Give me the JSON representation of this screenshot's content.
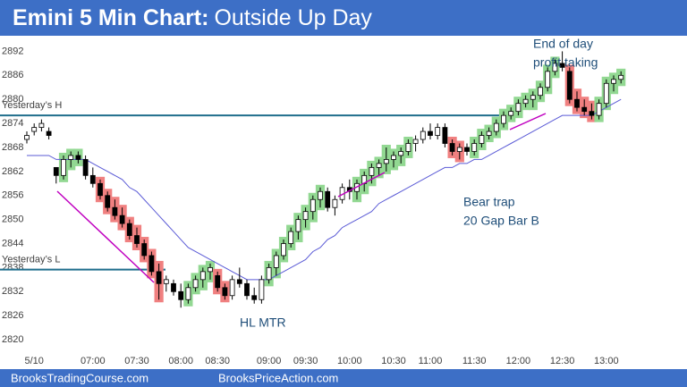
{
  "header": {
    "title_lead": "Emini 5 Min Chart:",
    "title_rest": "Outside Up Day",
    "color": "#3d6fc6"
  },
  "footer": {
    "left": "BrooksTradingCourse.com",
    "right": "BrooksPriceAction.com"
  },
  "chart_data": {
    "type": "candlestick",
    "categories": [
      null,
      "5/10",
      null,
      null,
      null,
      null,
      null,
      null,
      null,
      "07:00",
      null,
      null,
      null,
      null,
      null,
      "07:30",
      null,
      null,
      null,
      null,
      null,
      "08:00",
      null,
      null,
      null,
      null,
      "08:30",
      null,
      null,
      null,
      null,
      null,
      null,
      "09:00",
      null,
      null,
      null,
      null,
      "09:30",
      null,
      null,
      null,
      null,
      null,
      "10:00",
      null,
      null,
      null,
      null,
      null,
      "10:30",
      null,
      null,
      null,
      null,
      "11:00",
      null,
      null,
      null,
      null,
      null,
      "11:30",
      null,
      null,
      null,
      null,
      null,
      "12:00",
      null,
      null,
      null,
      null,
      null,
      "12:30",
      null,
      null,
      null,
      null,
      null,
      "13:00",
      null,
      null
    ],
    "open": [
      2870,
      2872,
      2873,
      2872,
      2863,
      2861,
      2865,
      2866,
      2865,
      2861,
      2859,
      2856,
      2853,
      2851,
      2849,
      2846,
      2844,
      2841,
      2837,
      2834,
      2834,
      2832,
      2830,
      2833,
      2835,
      2837,
      2836,
      2833,
      2831,
      2835,
      2834,
      2831,
      2830,
      2835,
      2838,
      2841,
      2844,
      2847,
      2850,
      2852,
      2855,
      2857,
      2853,
      2855,
      2858,
      2857,
      2859,
      2861,
      2863,
      2864,
      2865,
      2866,
      2867,
      2869,
      2870,
      2872,
      2871,
      2873,
      2869,
      2867,
      2868,
      2867,
      2869,
      2871,
      2872,
      2874,
      2876,
      2877,
      2879,
      2880,
      2881,
      2883,
      2887,
      2889,
      2887,
      2880,
      2878,
      2877,
      2876,
      2879,
      2884,
      2885
    ],
    "high": [
      2872,
      2874,
      2875,
      2873,
      2863,
      2866,
      2867,
      2867,
      2866,
      2863,
      2860,
      2857,
      2855,
      2853,
      2850,
      2848,
      2845,
      2842,
      2839,
      2836,
      2835,
      2834,
      2834,
      2836,
      2838,
      2839,
      2837,
      2834,
      2836,
      2838,
      2835,
      2833,
      2836,
      2839,
      2842,
      2845,
      2848,
      2851,
      2853,
      2856,
      2858,
      2858,
      2856,
      2859,
      2860,
      2860,
      2862,
      2864,
      2865,
      2868,
      2867,
      2868,
      2870,
      2871,
      2873,
      2874,
      2874,
      2874,
      2870,
      2869,
      2869,
      2870,
      2872,
      2873,
      2875,
      2877,
      2878,
      2880,
      2881,
      2882,
      2884,
      2888,
      2890,
      2892,
      2888,
      2882,
      2880,
      2879,
      2880,
      2885,
      2886,
      2887
    ],
    "low": [
      2869,
      2871,
      2872,
      2870,
      2859,
      2860,
      2863,
      2864,
      2860,
      2858,
      2855,
      2852,
      2850,
      2848,
      2845,
      2843,
      2840,
      2836,
      2830,
      2832,
      2831,
      2828,
      2829,
      2832,
      2833,
      2835,
      2832,
      2830,
      2830,
      2833,
      2830,
      2829,
      2829,
      2834,
      2836,
      2840,
      2843,
      2845,
      2848,
      2850,
      2853,
      2852,
      2851,
      2854,
      2855,
      2855,
      2857,
      2859,
      2861,
      2862,
      2863,
      2864,
      2866,
      2867,
      2869,
      2870,
      2870,
      2868,
      2866,
      2865,
      2866,
      2866,
      2868,
      2870,
      2871,
      2873,
      2875,
      2876,
      2878,
      2878,
      2880,
      2882,
      2886,
      2887,
      2879,
      2877,
      2876,
      2875,
      2875,
      2878,
      2882,
      2884
    ],
    "close": [
      2871,
      2873,
      2874,
      2871,
      2861,
      2865,
      2866,
      2865,
      2861,
      2859,
      2856,
      2853,
      2851,
      2849,
      2846,
      2844,
      2841,
      2837,
      2834,
      2835,
      2832,
      2830,
      2833,
      2835,
      2837,
      2838,
      2833,
      2831,
      2835,
      2834,
      2831,
      2830,
      2835,
      2838,
      2841,
      2844,
      2847,
      2850,
      2852,
      2855,
      2857,
      2853,
      2855,
      2858,
      2857,
      2859,
      2861,
      2863,
      2864,
      2865,
      2866,
      2867,
      2869,
      2870,
      2872,
      2871,
      2873,
      2869,
      2867,
      2868,
      2867,
      2869,
      2871,
      2872,
      2874,
      2876,
      2877,
      2879,
      2880,
      2881,
      2883,
      2887,
      2889,
      2888,
      2880,
      2878,
      2877,
      2876,
      2879,
      2884,
      2885,
      2886
    ],
    "highlight": [
      null,
      null,
      null,
      null,
      null,
      "#92d892",
      "#92d892",
      "#92d892",
      null,
      null,
      "#f08080",
      "#f08080",
      "#f08080",
      "#f08080",
      "#f08080",
      "#f08080",
      "#f08080",
      "#f08080",
      "#f08080",
      null,
      null,
      null,
      "#92d892",
      "#92d892",
      "#92d892",
      "#92d892",
      "#f08080",
      "#f08080",
      null,
      null,
      null,
      null,
      null,
      "#92d892",
      "#92d892",
      "#92d892",
      "#92d892",
      "#92d892",
      "#92d892",
      "#92d892",
      "#92d892",
      null,
      null,
      null,
      null,
      "#92d892",
      "#92d892",
      "#92d892",
      "#92d892",
      "#92d892",
      "#92d892",
      "#92d892",
      "#92d892",
      null,
      null,
      null,
      null,
      null,
      "#f08080",
      "#f08080",
      null,
      "#92d892",
      "#92d892",
      "#92d892",
      "#92d892",
      "#92d892",
      "#92d892",
      "#92d892",
      "#92d892",
      "#92d892",
      "#92d892",
      "#92d892",
      "#92d892",
      null,
      "#f08080",
      "#f08080",
      "#f08080",
      "#f08080",
      "#92d892",
      "#92d892",
      "#92d892",
      "#92d892"
    ],
    "ema": [
      2866,
      2866,
      2866,
      2866,
      2865,
      2865,
      2865,
      2865,
      2865,
      2864,
      2863,
      2862,
      2861,
      2860,
      2858,
      2857,
      2855,
      2853,
      2851,
      2849,
      2847,
      2845,
      2843,
      2842,
      2841,
      2840,
      2839,
      2838,
      2837,
      2836,
      2835,
      2835,
      2835,
      2835,
      2836,
      2837,
      2838,
      2839,
      2840,
      2842,
      2843,
      2845,
      2846,
      2848,
      2849,
      2850,
      2851,
      2852,
      2854,
      2855,
      2856,
      2857,
      2858,
      2859,
      2860,
      2861,
      2862,
      2863,
      2863,
      2864,
      2864,
      2865,
      2865,
      2866,
      2867,
      2868,
      2869,
      2870,
      2871,
      2872,
      2873,
      2874,
      2875,
      2876,
      2876,
      2876,
      2876,
      2876,
      2877,
      2878,
      2879,
      2880
    ],
    "ema_color": "#5b5bd6",
    "bull_color": "#ffffff",
    "bear_color": "#000000",
    "levels": [
      {
        "label": "Yesterday’s H",
        "value": 2876,
        "color": "#1f6e8c"
      },
      {
        "label": "Yesterday’s L",
        "value": 2837.5,
        "color": "#1f6e8c"
      }
    ],
    "annotations": [
      "End of day",
      "profit taking",
      "Bear trap",
      "20 Gap Bar B",
      "HL MTR"
    ],
    "ylim": [
      2817,
      2895
    ],
    "yticks": [
      2820,
      2826,
      2832,
      2838,
      2844,
      2850,
      2856,
      2862,
      2868,
      2874,
      2880,
      2886,
      2892
    ]
  }
}
